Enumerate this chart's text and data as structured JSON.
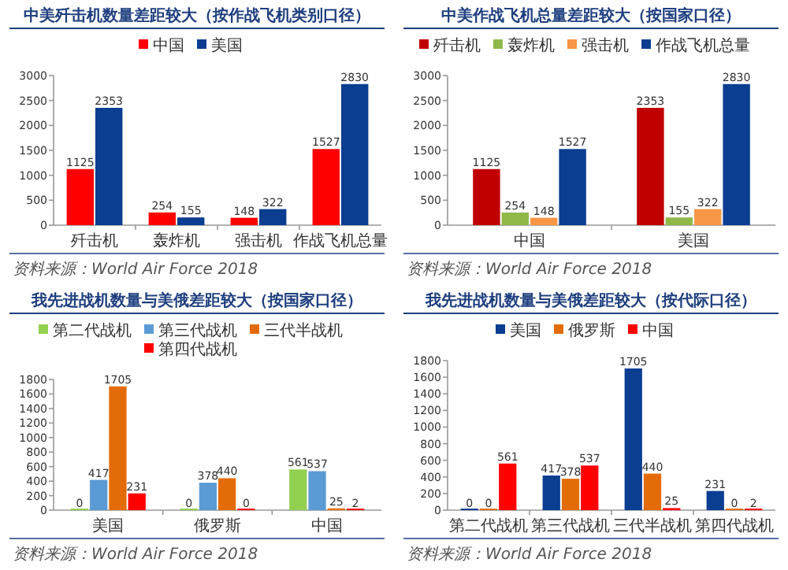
{
  "chart_data": [
    {
      "type": "bar",
      "title": "中美歼击机数量差距较大（按作战飞机类别口径）",
      "categories": [
        "歼击机",
        "轰炸机",
        "强击机",
        "作战飞机总量"
      ],
      "series": [
        {
          "name": "中国",
          "color": "#ff0000",
          "values": [
            1125,
            254,
            148,
            1527
          ]
        },
        {
          "name": "美国",
          "color": "#0b3d91",
          "values": [
            2353,
            155,
            322,
            2830
          ]
        }
      ],
      "ylim": [
        0,
        3000
      ],
      "yticks": [
        0,
        500,
        1000,
        1500,
        2000,
        2500,
        3000
      ],
      "data_labels": true,
      "legend": "top",
      "grid": false,
      "annotations": [
        "资料来源：World Air Force 2018"
      ]
    },
    {
      "type": "bar",
      "title": "中美作战飞机总量差距较大（按国家口径）",
      "categories": [
        "中国",
        "美国"
      ],
      "series": [
        {
          "name": "歼击机",
          "color": "#c00000",
          "values": [
            1125,
            2353
          ]
        },
        {
          "name": "轰炸机",
          "color": "#8fb849",
          "values": [
            254,
            155
          ]
        },
        {
          "name": "强击机",
          "color": "#f79646",
          "values": [
            148,
            322
          ]
        },
        {
          "name": "作战飞机总量",
          "color": "#0b3d91",
          "values": [
            1527,
            2830
          ]
        }
      ],
      "ylim": [
        0,
        3000
      ],
      "yticks": [
        0,
        500,
        1000,
        1500,
        2000,
        2500,
        3000
      ],
      "data_labels": true,
      "legend": "top",
      "grid": false,
      "annotations": [
        "资料来源：World Air Force 2018"
      ]
    },
    {
      "type": "bar",
      "title": "我先进战机数量与美俄差距较大（按国家口径）",
      "categories": [
        "美国",
        "俄罗斯",
        "中国"
      ],
      "series": [
        {
          "name": "第二代战机",
          "color": "#92d050",
          "values": [
            0,
            0,
            561
          ]
        },
        {
          "name": "第三代战机",
          "color": "#5b9bd5",
          "values": [
            417,
            378,
            537
          ]
        },
        {
          "name": "三代半战机",
          "color": "#e36c09",
          "values": [
            1705,
            440,
            25
          ]
        },
        {
          "name": "第四代战机",
          "color": "#ff0000",
          "values": [
            231,
            0,
            2
          ]
        }
      ],
      "ylim": [
        0,
        1800
      ],
      "yticks": [
        0,
        200,
        400,
        600,
        800,
        1000,
        1200,
        1400,
        1600,
        1800
      ],
      "data_labels": true,
      "legend": "top",
      "grid": false,
      "annotations": [
        "资料来源：World Air Force 2018"
      ]
    },
    {
      "type": "bar",
      "title": "我先进战机数量与美俄差距较大（按代际口径）",
      "categories": [
        "第二代战机",
        "第三代战机",
        "三代半战机",
        "第四代战机"
      ],
      "series": [
        {
          "name": "美国",
          "color": "#0b3d91",
          "values": [
            0,
            417,
            1705,
            231
          ]
        },
        {
          "name": "俄罗斯",
          "color": "#e36c09",
          "values": [
            0,
            378,
            440,
            0
          ]
        },
        {
          "name": "中国",
          "color": "#ff0000",
          "values": [
            561,
            537,
            25,
            2
          ]
        }
      ],
      "ylim": [
        0,
        1800
      ],
      "yticks": [
        0,
        200,
        400,
        600,
        800,
        1000,
        1200,
        1400,
        1600,
        1800
      ],
      "data_labels": true,
      "legend": "top",
      "grid": false,
      "annotations": [
        "资料来源：World Air Force 2018"
      ]
    }
  ]
}
